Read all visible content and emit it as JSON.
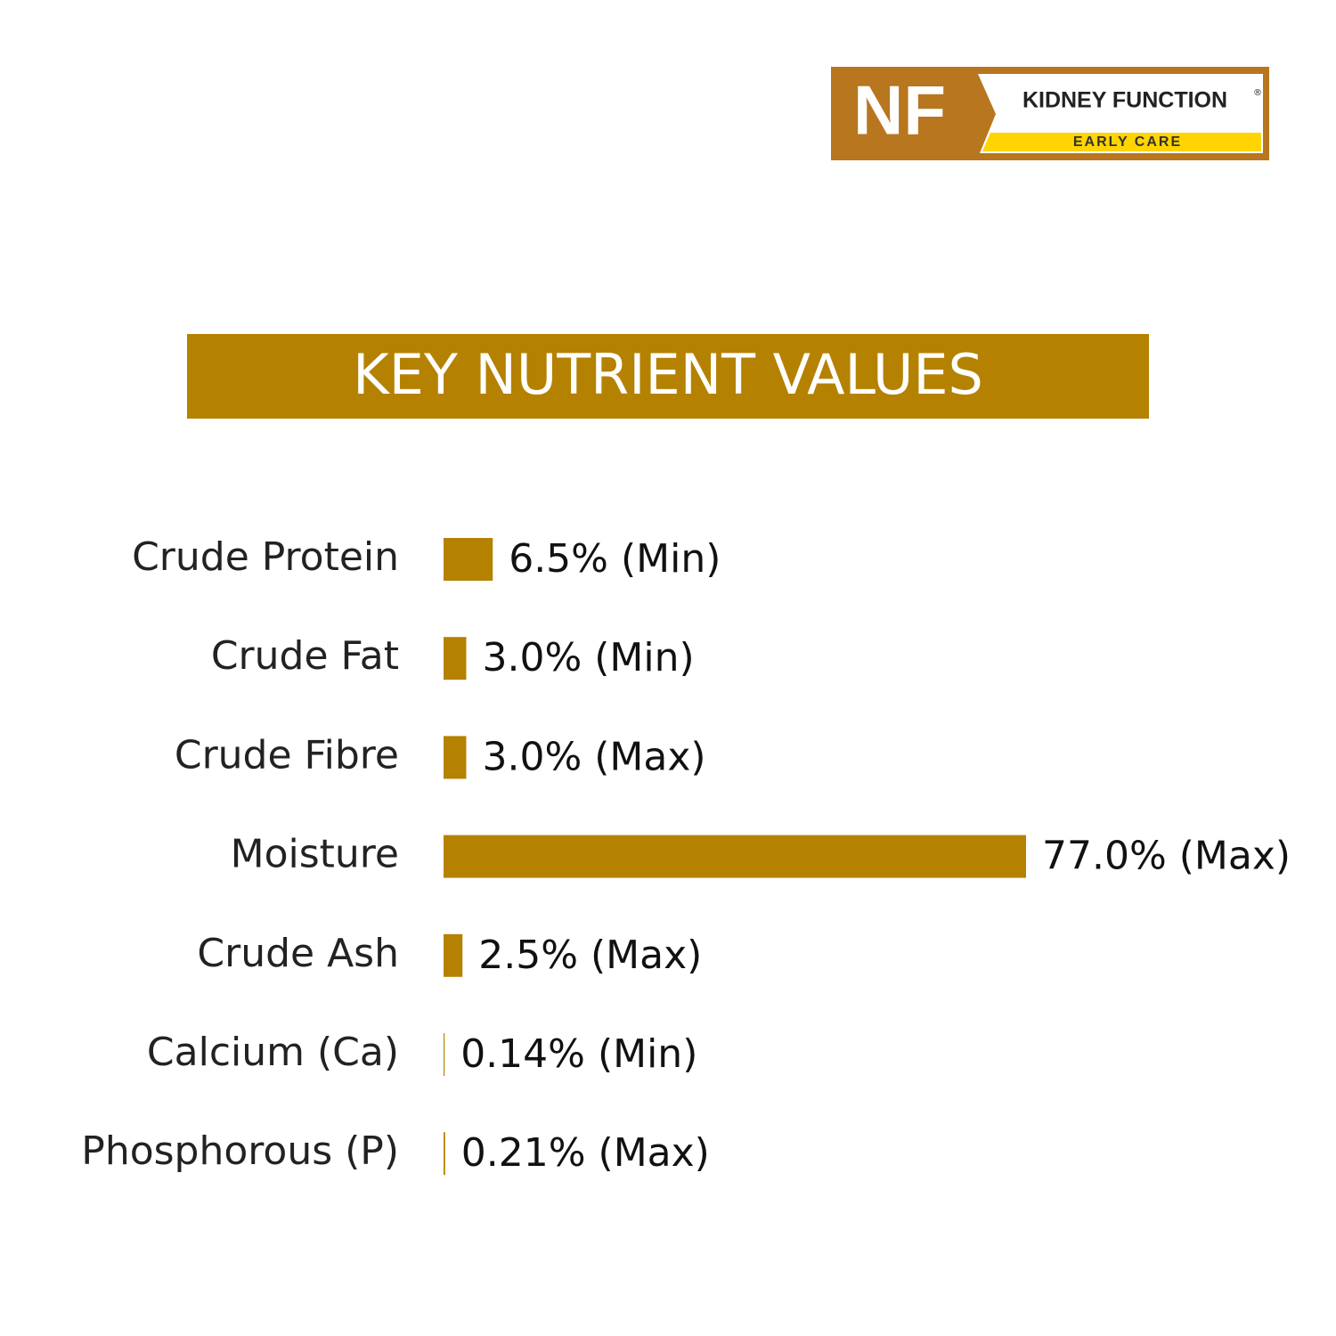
{
  "logo": {
    "badge": "NF",
    "name": "KIDNEY FUNCTION",
    "mark": "®",
    "tagline": "EARLY CARE"
  },
  "chart_data": {
    "type": "bar",
    "title": "KEY NUTRIENT VALUES",
    "categories": [
      "Crude Protein",
      "Crude Fat",
      "Crude Fibre",
      "Moisture",
      "Crude Ash",
      "Calcium (Ca)",
      "Phosphorous (P)"
    ],
    "values": [
      6.5,
      3.0,
      3.0,
      77.0,
      2.5,
      0.14,
      0.21
    ],
    "value_labels": [
      "6.5% (Min)",
      "3.0% (Min)",
      "3.0% (Max)",
      "77.0% (Max)",
      "2.5% (Max)",
      "0.14% (Min)",
      "0.21% (Max)"
    ],
    "color": "#b58100"
  }
}
